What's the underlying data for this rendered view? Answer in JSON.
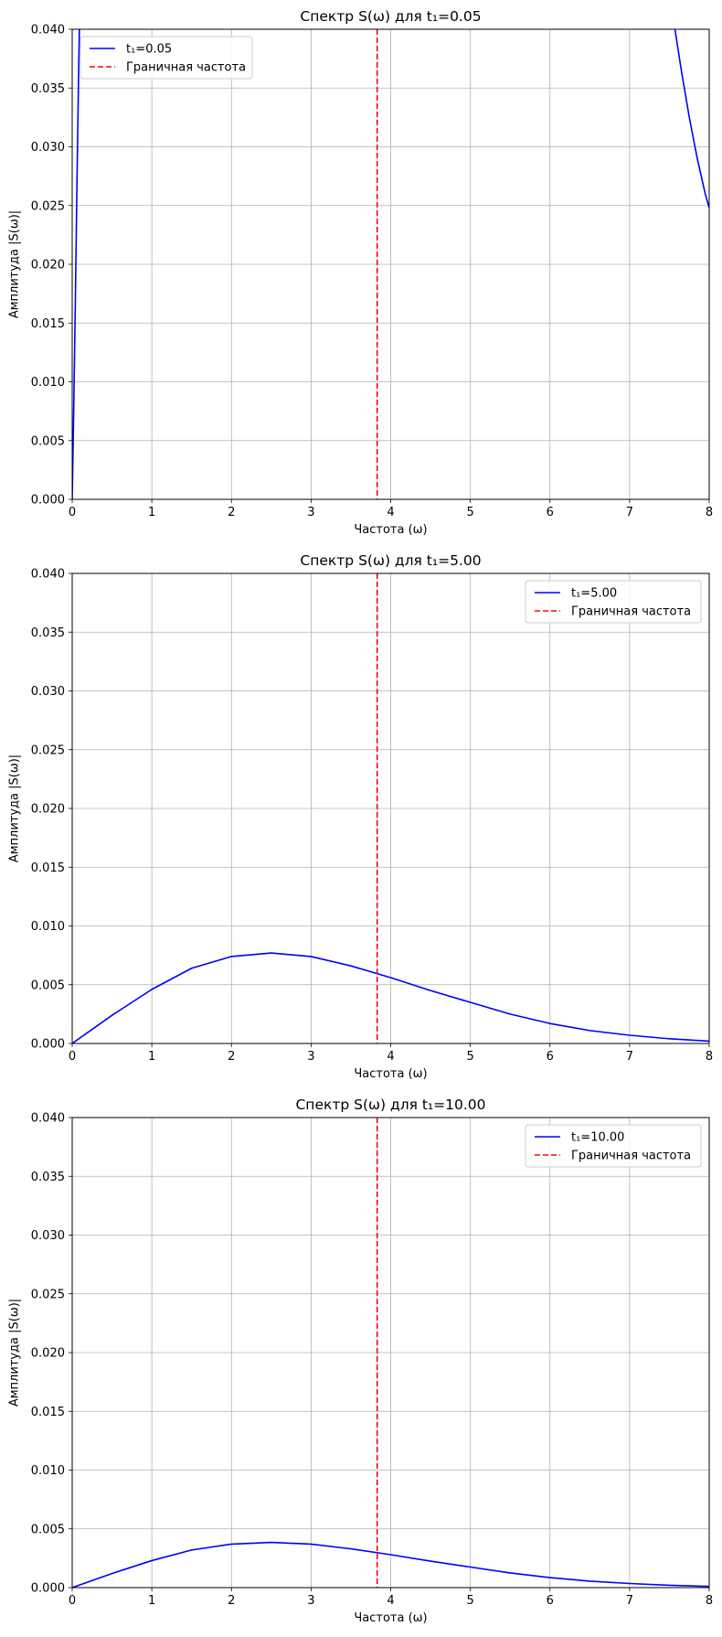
{
  "chart_data": [
    {
      "type": "line",
      "title": "Спектр S(ω) для t₁=0.05",
      "xlabel": "Частота (ω)",
      "ylabel": "Амплитуда |S(ω)|",
      "xlim": [
        0,
        8
      ],
      "ylim": [
        0,
        0.04
      ],
      "xticks": [
        "0",
        "1",
        "2",
        "3",
        "4",
        "5",
        "6",
        "7",
        "8"
      ],
      "yticks": [
        "0.000",
        "0.005",
        "0.010",
        "0.015",
        "0.020",
        "0.025",
        "0.030",
        "0.035",
        "0.040"
      ],
      "grid": true,
      "legend_position": "top-left",
      "series": [
        {
          "name": "t₁=0.05",
          "color": "#0000ff",
          "style": "solid",
          "segments": [
            [
              [
                0,
                0
              ],
              [
                0.02,
                0.008
              ],
              [
                0.04,
                0.017
              ],
              [
                0.06,
                0.027
              ],
              [
                0.08,
                0.036
              ],
              [
                0.09,
                0.04
              ]
            ],
            [
              [
                7.57,
                0.04
              ],
              [
                7.65,
                0.0365
              ],
              [
                7.75,
                0.0325
              ],
              [
                7.85,
                0.029
              ],
              [
                7.95,
                0.026
              ],
              [
                8.0,
                0.0248
              ]
            ]
          ]
        },
        {
          "name": "Граничная частота",
          "color": "#ff0000",
          "style": "dashed",
          "vline_x": 3.83
        }
      ]
    },
    {
      "type": "line",
      "title": "Спектр S(ω) для t₁=5.00",
      "xlabel": "Частота (ω)",
      "ylabel": "Амплитуда |S(ω)|",
      "xlim": [
        0,
        8
      ],
      "ylim": [
        0,
        0.04
      ],
      "xticks": [
        "0",
        "1",
        "2",
        "3",
        "4",
        "5",
        "6",
        "7",
        "8"
      ],
      "yticks": [
        "0.000",
        "0.005",
        "0.010",
        "0.015",
        "0.020",
        "0.025",
        "0.030",
        "0.035",
        "0.040"
      ],
      "grid": true,
      "legend_position": "top-right",
      "series": [
        {
          "name": "t₁=5.00",
          "color": "#0000ff",
          "style": "solid",
          "points": [
            [
              0,
              0
            ],
            [
              0.5,
              0.0024
            ],
            [
              1.0,
              0.0046
            ],
            [
              1.5,
              0.0064
            ],
            [
              2.0,
              0.0074
            ],
            [
              2.5,
              0.0077
            ],
            [
              3.0,
              0.0074
            ],
            [
              3.5,
              0.0066
            ],
            [
              4.0,
              0.0056
            ],
            [
              4.5,
              0.0045
            ],
            [
              5.0,
              0.0035
            ],
            [
              5.5,
              0.0025
            ],
            [
              6.0,
              0.0017
            ],
            [
              6.5,
              0.0011
            ],
            [
              7.0,
              0.0007
            ],
            [
              7.5,
              0.0004
            ],
            [
              8.0,
              0.0002
            ]
          ]
        },
        {
          "name": "Граничная частота",
          "color": "#ff0000",
          "style": "dashed",
          "vline_x": 3.83
        }
      ]
    },
    {
      "type": "line",
      "title": "Спектр S(ω) для t₁=10.00",
      "xlabel": "Частота (ω)",
      "ylabel": "Амплитуда |S(ω)|",
      "xlim": [
        0,
        8
      ],
      "ylim": [
        0,
        0.04
      ],
      "xticks": [
        "0",
        "1",
        "2",
        "3",
        "4",
        "5",
        "6",
        "7",
        "8"
      ],
      "yticks": [
        "0.000",
        "0.005",
        "0.010",
        "0.015",
        "0.020",
        "0.025",
        "0.030",
        "0.035",
        "0.040"
      ],
      "grid": true,
      "legend_position": "top-right",
      "series": [
        {
          "name": "t₁=10.00",
          "color": "#0000ff",
          "style": "solid",
          "points": [
            [
              0,
              0
            ],
            [
              0.5,
              0.0012
            ],
            [
              1.0,
              0.0023
            ],
            [
              1.5,
              0.0032
            ],
            [
              2.0,
              0.0037
            ],
            [
              2.5,
              0.00385
            ],
            [
              3.0,
              0.0037
            ],
            [
              3.5,
              0.0033
            ],
            [
              4.0,
              0.0028
            ],
            [
              4.5,
              0.00225
            ],
            [
              5.0,
              0.00175
            ],
            [
              5.5,
              0.00125
            ],
            [
              6.0,
              0.00085
            ],
            [
              6.5,
              0.00055
            ],
            [
              7.0,
              0.00035
            ],
            [
              7.5,
              0.0002
            ],
            [
              8.0,
              0.0001
            ]
          ]
        },
        {
          "name": "Граничная частота",
          "color": "#ff0000",
          "style": "dashed",
          "vline_x": 3.83
        }
      ]
    }
  ]
}
